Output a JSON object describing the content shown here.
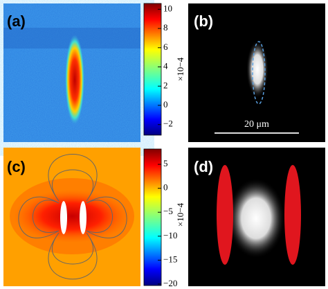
{
  "panels": [
    {
      "label": "(a)",
      "colorbar": {
        "clim": [
          -3.1,
          10.6
        ],
        "ticks": [
          10,
          8,
          6,
          4,
          2,
          0,
          {
            "value": -2,
            "label": "−2"
          }
        ],
        "exponent": "×10−4"
      }
    },
    {
      "label": "(b)",
      "scale_bar": "20 μm"
    },
    {
      "label": "(c)",
      "colorbar": {
        "clim": [
          -20.3,
          8.2
        ],
        "ticks": [
          5,
          0,
          {
            "value": -5,
            "label": "−5"
          },
          {
            "value": -10,
            "label": "−10"
          },
          {
            "value": -15,
            "label": "−15"
          },
          {
            "value": -20,
            "label": "−20"
          }
        ],
        "exponent": "×10−4"
      }
    },
    {
      "label": "(d)"
    }
  ]
}
